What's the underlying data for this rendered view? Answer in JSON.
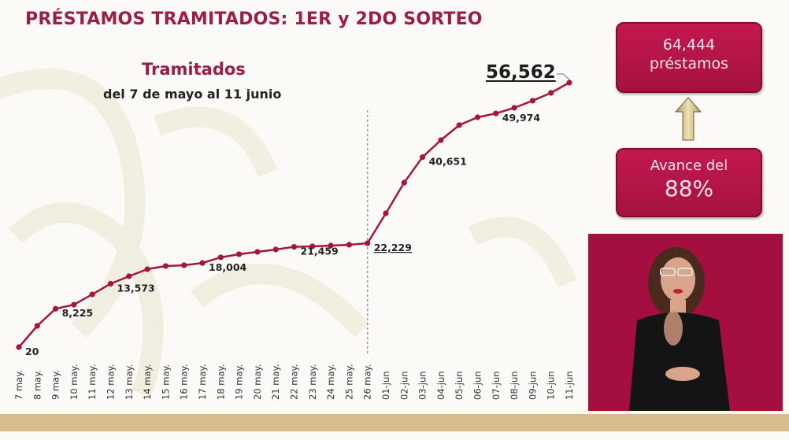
{
  "header": {
    "title": "PRÉSTAMOS TRAMITADOS: 1ER y 2DO SORTEO"
  },
  "chart": {
    "title": "Tramitados",
    "subtitle": "del 7 de mayo al 11 junio",
    "final_label": "56,562"
  },
  "summary": {
    "total_value": "64,444",
    "total_unit": "préstamos",
    "progress_label": "Avance del",
    "progress_value": "88%",
    "arrow_icon": "arrow-up-icon"
  },
  "interpreter": {
    "description": "Sign language interpreter video"
  },
  "colors": {
    "accent": "#9a1e48",
    "line": "#a3173f",
    "box": "#b3164a",
    "gold": "#d6bd8b"
  },
  "chart_data": {
    "type": "line",
    "title": "Tramitados",
    "subtitle": "del 7 de mayo al 11 junio",
    "xlabel": "",
    "ylabel": "",
    "grid": false,
    "legend": null,
    "categories": [
      "7 may.",
      "8 may.",
      "9 may.",
      "10 may.",
      "11 may.",
      "12 may.",
      "13 may.",
      "14 may.",
      "15 may.",
      "16 may.",
      "17 may.",
      "18 may.",
      "19 may.",
      "20 may.",
      "21 may.",
      "22 may.",
      "23 may.",
      "24 may.",
      "25 may.",
      "26 may.",
      "01-jun",
      "02-jun",
      "03-jun",
      "04-jun",
      "05-jun",
      "06-jun",
      "07-jun",
      "08-jun",
      "09-jun",
      "10-jun",
      "11-jun"
    ],
    "series": [
      {
        "name": "Tramitados",
        "values": [
          20,
          4560,
          8225,
          9100,
          11300,
          13573,
          15170,
          16680,
          17360,
          17530,
          18004,
          19210,
          19880,
          20380,
          20890,
          21459,
          21560,
          21730,
          21900,
          22229,
          28630,
          35190,
          40651,
          44280,
          47480,
          49160,
          49974,
          51180,
          52700,
          54380,
          56562
        ]
      }
    ],
    "data_labels": [
      {
        "category": "7 may.",
        "value": "20"
      },
      {
        "category": "9 may.",
        "value": "8,225"
      },
      {
        "category": "12 may.",
        "value": "13,573"
      },
      {
        "category": "17 may.",
        "value": "18,004"
      },
      {
        "category": "22 may.",
        "value": "21,459"
      },
      {
        "category": "26 may.",
        "value": "22,229"
      },
      {
        "category": "03-jun",
        "value": "40,651"
      },
      {
        "category": "07-jun",
        "value": "49,974"
      },
      {
        "category": "11-jun",
        "value": "56,562"
      }
    ],
    "annotations": [
      "vertical dashed line at 26 may. separating 1er and 2do sorteo"
    ],
    "ylim": [
      0,
      57000
    ]
  }
}
